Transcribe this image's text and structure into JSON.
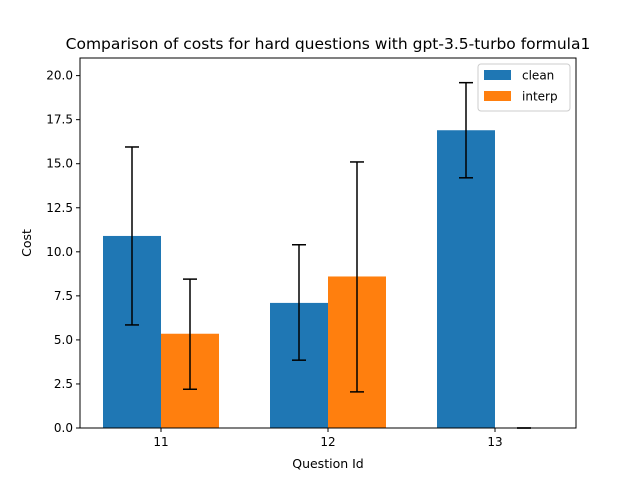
{
  "chart_data": {
    "type": "bar",
    "title": "Comparison of costs for hard questions with gpt-3.5-turbo formula1",
    "xlabel": "Question Id",
    "ylabel": "Cost",
    "categories": [
      "11",
      "12",
      "13"
    ],
    "ylim": [
      0,
      21
    ],
    "yticks": [
      "0.0",
      "2.5",
      "5.0",
      "7.5",
      "10.0",
      "12.5",
      "15.0",
      "17.5",
      "20.0"
    ],
    "legend_position": "top-right",
    "grid": false,
    "series": [
      {
        "name": "clean",
        "color": "#1f77b4",
        "values": [
          10.9,
          7.1,
          16.9
        ],
        "error_low": [
          5.85,
          3.85,
          14.2
        ],
        "error_high": [
          15.95,
          10.4,
          19.6
        ]
      },
      {
        "name": "interp",
        "color": "#ff7f0e",
        "values": [
          5.35,
          8.6,
          0
        ],
        "error_low": [
          2.2,
          2.05,
          0
        ],
        "error_high": [
          8.45,
          15.1,
          0
        ]
      }
    ]
  }
}
